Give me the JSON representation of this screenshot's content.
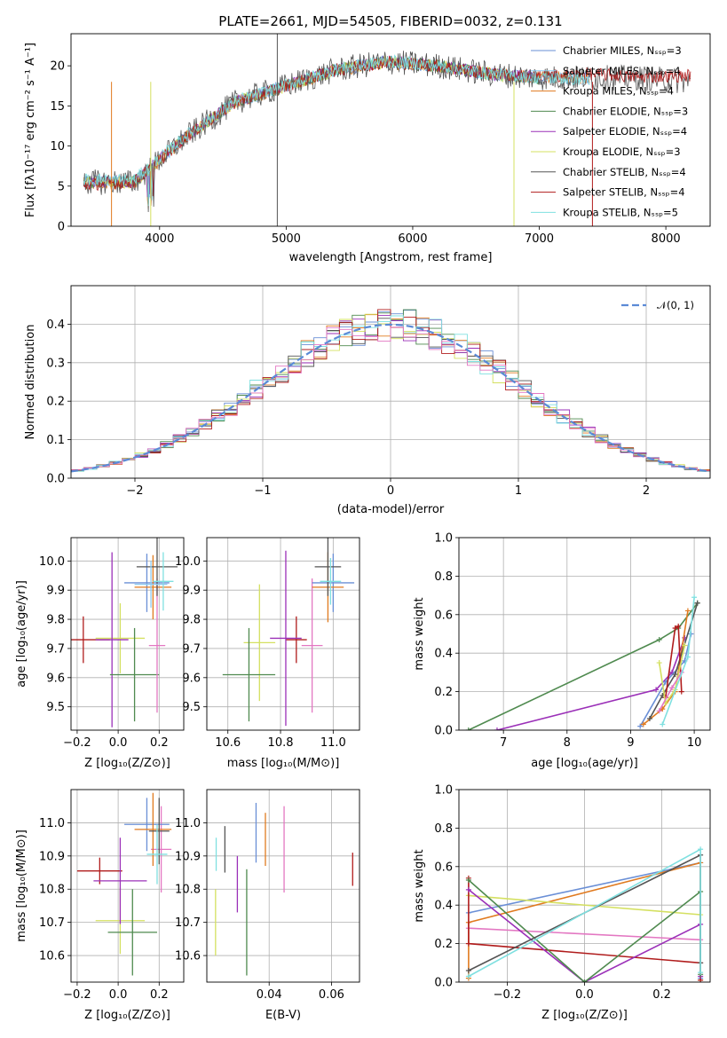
{
  "figure": {
    "title": "PLATE=2661, MJD=54505, FIBERID=0032, z=0.131"
  },
  "chart_data": [
    {
      "id": "spectrum",
      "type": "line",
      "xlabel": "wavelength [Angstrom, rest frame]",
      "ylabel": "Flux [fλ10⁻¹⁷ erg cm⁻² s⁻¹ A⁻¹]",
      "xlim": [
        3300,
        8350
      ],
      "ylim": [
        0,
        24
      ],
      "xticks": [
        4000,
        5000,
        6000,
        7000,
        8000
      ],
      "yticks": [
        0,
        5,
        10,
        15,
        20
      ],
      "legend_position": "top-right",
      "series": [
        {
          "name": "Chabrier MILES, N_SSP=3",
          "color": "#6a8fd6",
          "x": [
            3400,
            3800,
            4200,
            4600,
            5000,
            5400,
            5800,
            6200,
            6600,
            7000,
            7400
          ],
          "y": [
            5.5,
            5.5,
            11,
            15.5,
            17.5,
            19.5,
            20.5,
            20,
            19,
            18.5,
            18.5
          ]
        },
        {
          "name": "Salpeter MILES, N_SSP=4",
          "color": "#8ecbf0",
          "x": [
            3400,
            3800,
            4200,
            4600,
            5000,
            5400,
            5800,
            6200,
            6600,
            7000,
            7400
          ],
          "y": [
            5.6,
            5.5,
            11,
            15.5,
            17.5,
            19.6,
            20.5,
            20,
            19,
            18.5,
            18.4
          ]
        },
        {
          "name": "Kroupa MILES, N_SSP=4",
          "color": "#e07a1f",
          "x": [
            3400,
            3800,
            4200,
            4600,
            5000,
            5400,
            5800,
            6200,
            6600,
            7000,
            7400
          ],
          "y": [
            5.4,
            5.4,
            11,
            15.4,
            17.4,
            19.5,
            20.4,
            20,
            19,
            18.6,
            18.5
          ]
        },
        {
          "name": "Chabrier ELODIE, N_SSP=3",
          "color": "#4f8a4f",
          "x": [
            3400,
            3800,
            4200,
            4600,
            5000,
            5400,
            5800,
            6200,
            6600,
            7000
          ],
          "y": [
            5.5,
            5.5,
            11,
            15.5,
            17.5,
            19.5,
            20.5,
            20,
            19,
            18.5
          ]
        },
        {
          "name": "Salpeter ELODIE, N_SSP=4",
          "color": "#9b30b8",
          "x": [
            3400,
            3800,
            4200,
            4600,
            5000,
            5400,
            5800,
            6200,
            6600,
            7000
          ],
          "y": [
            5.5,
            5.6,
            11,
            15.5,
            17.6,
            19.5,
            20.5,
            20,
            19,
            18.5
          ]
        },
        {
          "name": "Kroupa ELODIE, N_SSP=3",
          "color": "#d4e060",
          "x": [
            3400,
            3800,
            4200,
            4600,
            5000,
            5400,
            5800,
            6200,
            6600,
            6800
          ],
          "y": [
            5.5,
            5.5,
            11,
            15.5,
            17.5,
            19.5,
            20.5,
            20,
            19,
            18.5
          ]
        },
        {
          "name": "Chabrier STELIB, N_SSP=4",
          "color": "#555555",
          "x": [
            3400,
            3800,
            4200,
            4600,
            5000,
            5400,
            5800,
            6200,
            6600,
            7000,
            7400,
            7800,
            8200
          ],
          "y": [
            5.5,
            5.5,
            11,
            15.5,
            17.5,
            19.5,
            20.5,
            20,
            19,
            18.5,
            18.5,
            18.5,
            18
          ]
        },
        {
          "name": "Salpeter STELIB, N_SSP=4",
          "color": "#b01c1c",
          "x": [
            3400,
            3800,
            4200,
            4600,
            5000,
            5400,
            5800,
            6200,
            6600,
            7000,
            7400,
            7800,
            8200
          ],
          "y": [
            5.2,
            5.5,
            11,
            15.5,
            17.5,
            19.5,
            20.5,
            20,
            19,
            18.6,
            19,
            18.6,
            18.8
          ]
        },
        {
          "name": "Kroupa STELIB, N_SSP=5",
          "color": "#7fe0e0",
          "x": [
            3400,
            3800,
            4200,
            4600,
            5000,
            5400,
            5800,
            6200,
            6600,
            7000,
            7400
          ],
          "y": [
            5.8,
            5.8,
            11.2,
            15.6,
            17.6,
            19.6,
            20.6,
            20,
            19,
            18.5,
            18.3
          ]
        }
      ]
    },
    {
      "id": "residuals",
      "type": "line",
      "xlabel": "(data-model)/error",
      "ylabel": "Normed distribution",
      "xlim": [
        -2.5,
        2.5
      ],
      "ylim": [
        0,
        0.5
      ],
      "xticks": [
        -2,
        -1,
        0,
        1,
        2
      ],
      "yticks": [
        0.0,
        0.1,
        0.2,
        0.3,
        0.4
      ],
      "grid": true,
      "legend_position": "top-right",
      "series": [
        {
          "name": "𝒩(0, 1)",
          "color": "#5b8ad6",
          "style": "dashed",
          "mu": 0,
          "sigma": 1
        }
      ]
    },
    {
      "id": "age-vs-Z",
      "type": "scatter",
      "xlabel": "Z [log₁₀(Z/Z⊙)]",
      "ylabel": "age  [log₁₀(age/yr)]",
      "xlim": [
        -0.23,
        0.32
      ],
      "ylim": [
        9.42,
        10.08
      ],
      "xticks": [
        -0.2,
        0.0,
        0.2
      ],
      "yticks": [
        9.5,
        9.6,
        9.7,
        9.8,
        9.9,
        10.0
      ],
      "grid": true,
      "points": [
        {
          "color": "#b01c1c",
          "x": -0.17,
          "y": 9.73,
          "xerr": 0.13,
          "yerr": 0.08
        },
        {
          "color": "#d4e060",
          "x": 0.01,
          "y": 9.735,
          "xerr": 0.12,
          "yerr": 0.12
        },
        {
          "color": "#9b30b8",
          "x": -0.03,
          "y": 9.73,
          "xerr": 0.08,
          "yerr": 0.3
        },
        {
          "color": "#4f8a4f",
          "x": 0.08,
          "y": 9.61,
          "xerr": 0.12,
          "yerr": 0.16
        },
        {
          "color": "#e377c2",
          "x": 0.19,
          "y": 9.71,
          "xerr": 0.04,
          "yerr": 0.23
        },
        {
          "color": "#6a8fd6",
          "x": 0.14,
          "y": 9.925,
          "xerr": 0.11,
          "yerr": 0.1
        },
        {
          "color": "#e07a1f",
          "x": 0.17,
          "y": 9.91,
          "xerr": 0.09,
          "yerr": 0.11
        },
        {
          "color": "#555555",
          "x": 0.19,
          "y": 9.98,
          "xerr": 0.1,
          "yerr": 0.1
        },
        {
          "color": "#7fe0e0",
          "x": 0.22,
          "y": 9.93,
          "xerr": 0.05,
          "yerr": 0.1
        },
        {
          "color": "#8ecbf0",
          "x": 0.16,
          "y": 9.92,
          "xerr": 0.08,
          "yerr": 0.08
        }
      ]
    },
    {
      "id": "age-vs-mass",
      "type": "scatter",
      "xlabel": "mass [log₁₀(M/M⊙)]",
      "ylabel": "",
      "xlim": [
        10.52,
        11.1
      ],
      "ylim": [
        9.42,
        10.08
      ],
      "xticks": [
        10.6,
        10.8,
        11.0
      ],
      "yticks": [
        9.5,
        9.6,
        9.7,
        9.8,
        9.9,
        10.0
      ],
      "grid": true,
      "points": [
        {
          "color": "#b01c1c",
          "x": 10.86,
          "y": 9.73,
          "xerr": 0.04,
          "yerr": 0.08
        },
        {
          "color": "#d4e060",
          "x": 10.72,
          "y": 9.72,
          "xerr": 0.06,
          "yerr": 0.2
        },
        {
          "color": "#9b30b8",
          "x": 10.82,
          "y": 9.735,
          "xerr": 0.06,
          "yerr": 0.3
        },
        {
          "color": "#4f8a4f",
          "x": 10.68,
          "y": 9.61,
          "xerr": 0.1,
          "yerr": 0.16
        },
        {
          "color": "#e377c2",
          "x": 10.92,
          "y": 9.71,
          "xerr": 0.04,
          "yerr": 0.23
        },
        {
          "color": "#6a8fd6",
          "x": 11.0,
          "y": 9.925,
          "xerr": 0.08,
          "yerr": 0.1
        },
        {
          "color": "#e07a1f",
          "x": 10.98,
          "y": 9.91,
          "xerr": 0.06,
          "yerr": 0.12
        },
        {
          "color": "#555555",
          "x": 10.98,
          "y": 9.98,
          "xerr": 0.05,
          "yerr": 0.1
        },
        {
          "color": "#7fe0e0",
          "x": 10.99,
          "y": 9.93,
          "xerr": 0.04,
          "yerr": 0.08
        }
      ]
    },
    {
      "id": "weight-vs-age",
      "type": "line",
      "xlabel": "age  [log₁₀(age/yr)]",
      "ylabel": "mass weight",
      "xlim": [
        6.3,
        10.25
      ],
      "ylim": [
        0,
        1.0
      ],
      "xticks": [
        7,
        8,
        9,
        10
      ],
      "yticks": [
        0.0,
        0.2,
        0.4,
        0.6,
        0.8,
        1.0
      ],
      "grid": true,
      "series": [
        {
          "color": "#4f8a4f",
          "x": [
            6.45,
            9.45,
            9.75,
            10.05
          ],
          "y": [
            0.0,
            0.47,
            0.53,
            0.66
          ]
        },
        {
          "color": "#9b30b8",
          "x": [
            6.9,
            9.4,
            9.65,
            9.85
          ],
          "y": [
            0.0,
            0.21,
            0.3,
            0.48
          ]
        },
        {
          "color": "#6a8fd6",
          "x": [
            9.15,
            9.55,
            9.85,
            9.95
          ],
          "y": [
            0.02,
            0.25,
            0.36,
            0.5
          ]
        },
        {
          "color": "#e07a1f",
          "x": [
            9.2,
            9.5,
            9.7,
            9.9
          ],
          "y": [
            0.03,
            0.11,
            0.2,
            0.62
          ]
        },
        {
          "color": "#555555",
          "x": [
            9.3,
            9.5,
            9.7,
            10.05
          ],
          "y": [
            0.06,
            0.18,
            0.29,
            0.66
          ]
        },
        {
          "color": "#b01c1c",
          "x": [
            9.55,
            9.7,
            9.75,
            9.8
          ],
          "y": [
            0.17,
            0.53,
            0.54,
            0.2
          ]
        },
        {
          "color": "#d4e060",
          "x": [
            9.45,
            9.55,
            9.7,
            9.85
          ],
          "y": [
            0.35,
            0.14,
            0.21,
            0.44
          ]
        },
        {
          "color": "#e377c2",
          "x": [
            9.45,
            9.65,
            9.8
          ],
          "y": [
            0.1,
            0.22,
            0.3
          ]
        },
        {
          "color": "#7fe0e0",
          "x": [
            9.5,
            9.9,
            10.0
          ],
          "y": [
            0.03,
            0.38,
            0.69
          ]
        }
      ]
    },
    {
      "id": "mass-vs-Z",
      "type": "scatter",
      "xlabel": "Z [log₁₀(Z/Z⊙)]",
      "ylabel": "mass [log₁₀(M/M⊙)]",
      "xlim": [
        -0.23,
        0.32
      ],
      "ylim": [
        10.52,
        11.1
      ],
      "xticks": [
        -0.2,
        0.0,
        0.2
      ],
      "yticks": [
        10.6,
        10.7,
        10.8,
        10.9,
        11.0
      ],
      "grid": true,
      "points": [
        {
          "color": "#b01c1c",
          "x": -0.09,
          "y": 10.855,
          "xerr": 0.11,
          "yerr": 0.04
        },
        {
          "color": "#d4e060",
          "x": 0.01,
          "y": 10.705,
          "xerr": 0.12,
          "yerr": 0.1
        },
        {
          "color": "#9b30b8",
          "x": 0.01,
          "y": 10.825,
          "xerr": 0.13,
          "yerr": 0.13
        },
        {
          "color": "#4f8a4f",
          "x": 0.07,
          "y": 10.67,
          "xerr": 0.12,
          "yerr": 0.13
        },
        {
          "color": "#e377c2",
          "x": 0.21,
          "y": 10.92,
          "xerr": 0.05,
          "yerr": 0.13
        },
        {
          "color": "#6a8fd6",
          "x": 0.14,
          "y": 10.995,
          "xerr": 0.11,
          "yerr": 0.08
        },
        {
          "color": "#e07a1f",
          "x": 0.17,
          "y": 10.98,
          "xerr": 0.09,
          "yerr": 0.11
        },
        {
          "color": "#555555",
          "x": 0.2,
          "y": 10.975,
          "xerr": 0.05,
          "yerr": 0.1
        },
        {
          "color": "#7fe0e0",
          "x": 0.19,
          "y": 10.905,
          "xerr": 0.05,
          "yerr": 0.09
        }
      ]
    },
    {
      "id": "mass-vs-ebv",
      "type": "scatter",
      "xlabel": "E(B-V)",
      "ylabel": "",
      "xlim": [
        0.02,
        0.069
      ],
      "ylim": [
        10.52,
        11.1
      ],
      "xticks": [
        0.04,
        0.06
      ],
      "yticks": [
        10.6,
        10.7,
        10.8,
        10.9,
        11.0
      ],
      "grid": true,
      "points": [
        {
          "color": "#d4e060",
          "x": 0.0228,
          "y": 10.7,
          "yerr": 0.1
        },
        {
          "color": "#7fe0e0",
          "x": 0.023,
          "y": 10.905,
          "yerr": 0.05
        },
        {
          "color": "#555555",
          "x": 0.0258,
          "y": 10.92,
          "yerr": 0.07
        },
        {
          "color": "#9b30b8",
          "x": 0.0298,
          "y": 10.815,
          "yerr": 0.085
        },
        {
          "color": "#4f8a4f",
          "x": 0.0328,
          "y": 10.7,
          "yerr": 0.16
        },
        {
          "color": "#6a8fd6",
          "x": 0.0358,
          "y": 10.97,
          "yerr": 0.09
        },
        {
          "color": "#e07a1f",
          "x": 0.0388,
          "y": 10.95,
          "yerr": 0.08
        },
        {
          "color": "#e377c2",
          "x": 0.0448,
          "y": 10.92,
          "yerr": 0.13
        },
        {
          "color": "#b01c1c",
          "x": 0.0668,
          "y": 10.86,
          "yerr": 0.05
        }
      ]
    },
    {
      "id": "weight-vs-Z",
      "type": "line",
      "xlabel": "Z [log₁₀(Z/Z⊙)]",
      "ylabel": "mass weight",
      "xlim": [
        -0.325,
        0.325
      ],
      "ylim": [
        0,
        1.0
      ],
      "xticks": [
        -0.2,
        0.0,
        0.2
      ],
      "yticks": [
        0.0,
        0.2,
        0.4,
        0.6,
        0.8,
        1.0
      ],
      "grid": true,
      "series": [
        {
          "color": "#6a8fd6",
          "x": [
            -0.3,
            0.3,
            0.3
          ],
          "y": [
            0.36,
            0.62,
            0.02
          ]
        },
        {
          "color": "#e07a1f",
          "x": [
            -0.3,
            -0.3,
            0.3,
            0.3
          ],
          "y": [
            0.02,
            0.31,
            0.62,
            0.01
          ]
        },
        {
          "color": "#d4e060",
          "x": [
            -0.3,
            0.3
          ],
          "y": [
            0.45,
            0.35
          ]
        },
        {
          "color": "#e377c2",
          "x": [
            -0.3,
            0.3
          ],
          "y": [
            0.28,
            0.22
          ]
        },
        {
          "color": "#b01c1c",
          "x": [
            -0.3,
            -0.3,
            0.3,
            0.3
          ],
          "y": [
            0.54,
            0.2,
            0.1,
            0.01
          ]
        },
        {
          "color": "#9b30b8",
          "x": [
            -0.3,
            0.0,
            0.3,
            0.3
          ],
          "y": [
            0.48,
            0.0,
            0.3,
            0.03
          ]
        },
        {
          "color": "#4f8a4f",
          "x": [
            -0.3,
            0.0,
            0.3,
            0.3
          ],
          "y": [
            0.53,
            0.0,
            0.47,
            0.04
          ]
        },
        {
          "color": "#555555",
          "x": [
            -0.3,
            0.3,
            0.3
          ],
          "y": [
            0.06,
            0.66,
            0.1
          ]
        },
        {
          "color": "#7fe0e0",
          "x": [
            -0.3,
            0.3,
            0.3
          ],
          "y": [
            0.03,
            0.69,
            0.05
          ]
        }
      ]
    }
  ]
}
